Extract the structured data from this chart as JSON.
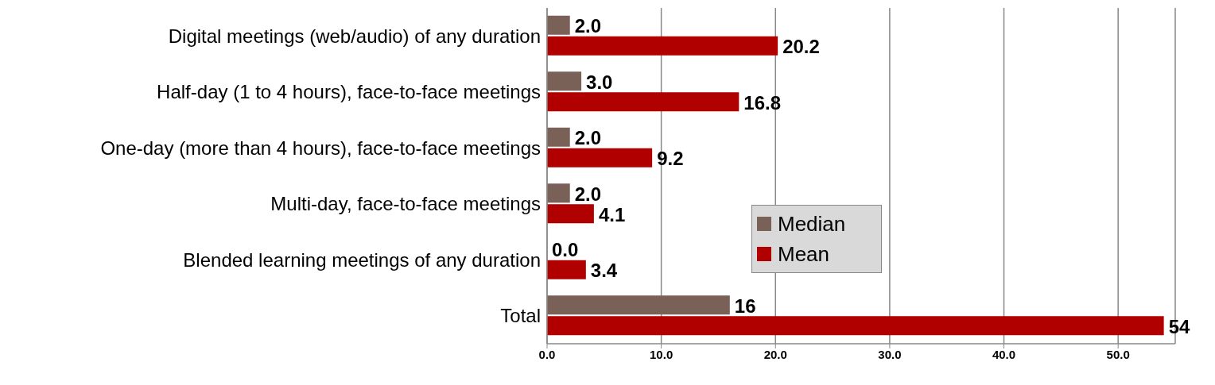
{
  "chart_data": {
    "type": "bar",
    "orientation": "horizontal",
    "categories": [
      "Digital meetings (web/audio) of any duration",
      "Half-day (1 to 4 hours), face-to-face meetings",
      "One-day (more than 4 hours), face-to-face meetings",
      "Multi-day, face-to-face meetings",
      "Blended learning meetings of any duration",
      "Total"
    ],
    "series": [
      {
        "name": "Median",
        "color": "#7a6158",
        "values": [
          2.0,
          3.0,
          2.0,
          2.0,
          0.0,
          16
        ],
        "value_labels": [
          "2.0",
          "3.0",
          "2.0",
          "2.0",
          "0.0",
          "16"
        ]
      },
      {
        "name": "Mean",
        "color": "#b00000",
        "values": [
          20.2,
          16.8,
          9.2,
          4.1,
          3.4,
          54
        ],
        "value_labels": [
          "20.2",
          "16.8",
          "9.2",
          "4.1",
          "3.4",
          "54"
        ]
      }
    ],
    "xlim": [
      0,
      55
    ],
    "xticks": [
      {
        "value": 0,
        "label": "0.0"
      },
      {
        "value": 10,
        "label": "10.0"
      },
      {
        "value": 20,
        "label": "20.0"
      },
      {
        "value": 30,
        "label": "30.0"
      },
      {
        "value": 40,
        "label": "40.0"
      },
      {
        "value": 50,
        "label": "50.0"
      }
    ],
    "grid": "x",
    "legend": "center"
  }
}
